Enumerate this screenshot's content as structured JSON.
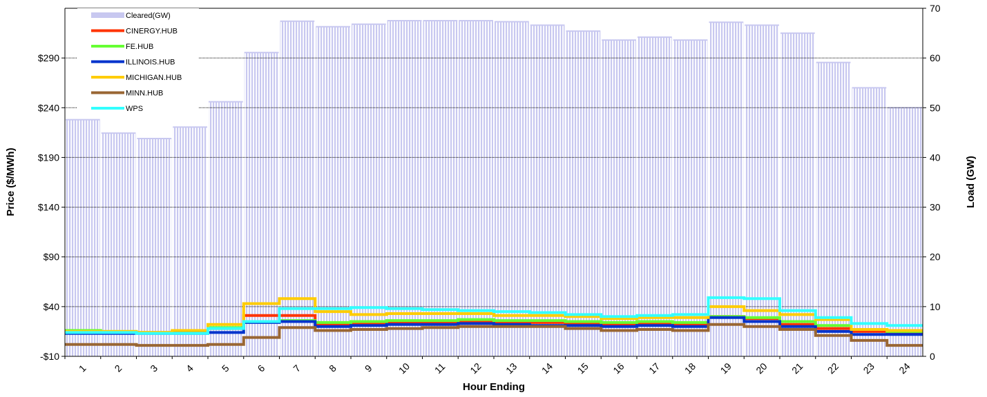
{
  "chart_data": {
    "type": "bar+line",
    "title": "",
    "xlabel": "Hour Ending",
    "ylabel_left": "Price ($/MWh)",
    "ylabel_right": "Load (GW)",
    "ylim_left": [
      -10,
      340
    ],
    "ylim_right": [
      0,
      70
    ],
    "left_ticks": [
      "-$10",
      "$40",
      "$90",
      "$140",
      "$190",
      "$240",
      "$290"
    ],
    "left_tick_values": [
      -10,
      40,
      90,
      140,
      190,
      240,
      290
    ],
    "right_ticks": [
      "0",
      "10",
      "20",
      "30",
      "40",
      "50",
      "60",
      "70"
    ],
    "right_tick_values": [
      0,
      10,
      20,
      30,
      40,
      50,
      60,
      70
    ],
    "categories": [
      "1",
      "2",
      "3",
      "4",
      "5",
      "6",
      "7",
      "8",
      "9",
      "10",
      "11",
      "12",
      "13",
      "14",
      "15",
      "16",
      "17",
      "18",
      "19",
      "20",
      "21",
      "22",
      "23",
      "24"
    ],
    "grid": "horizontal",
    "legend_position": "top-left",
    "bar_series": {
      "name": "Cleared(GW)",
      "axis": "right",
      "color": "#c8c8f0",
      "values": [
        47.6,
        44.9,
        43.8,
        46.1,
        51.2,
        61.1,
        67.4,
        66.3,
        66.8,
        67.5,
        67.5,
        67.5,
        67.3,
        66.6,
        65.4,
        63.6,
        64.2,
        63.6,
        67.2,
        66.6,
        65.0,
        59.1,
        54.0,
        50.0
      ]
    },
    "series": [
      {
        "name": "CINERGY.HUB",
        "color": "#ff3300",
        "values": [
          15,
          14,
          14,
          15,
          18,
          31,
          31,
          22,
          23,
          24,
          24,
          25,
          24,
          24,
          23,
          22,
          23,
          22,
          30,
          28,
          22,
          18,
          15,
          13
        ]
      },
      {
        "name": "FE.HUB",
        "color": "#66ff33",
        "values": [
          16,
          15,
          14,
          15,
          19,
          25,
          26,
          24,
          25,
          26,
          26,
          27,
          26,
          26,
          25,
          24,
          25,
          24,
          30,
          29,
          25,
          21,
          17,
          15
        ]
      },
      {
        "name": "ILLINOIS.HUB",
        "color": "#0033cc",
        "values": [
          13,
          13,
          13,
          13,
          14,
          24,
          25,
          20,
          21,
          22,
          22,
          23,
          22,
          21,
          21,
          20,
          21,
          20,
          29,
          25,
          20,
          15,
          12,
          12
        ]
      },
      {
        "name": "MICHIGAN.HUB",
        "color": "#ffcc00",
        "values": [
          15,
          15,
          14,
          16,
          22,
          43,
          48,
          35,
          32,
          33,
          33,
          33,
          31,
          31,
          30,
          28,
          29,
          29,
          40,
          36,
          32,
          27,
          17,
          16
        ]
      },
      {
        "name": "MINN.HUB",
        "color": "#996633",
        "values": [
          2,
          2,
          1,
          1,
          2,
          9,
          19,
          16,
          17,
          18,
          19,
          20,
          20,
          20,
          18,
          16,
          17,
          16,
          22,
          20,
          17,
          11,
          6,
          1
        ]
      },
      {
        "name": "WPS",
        "color": "#33ffff",
        "values": [
          14,
          14,
          13,
          13,
          18,
          25,
          38,
          38,
          39,
          38,
          37,
          36,
          35,
          34,
          32,
          30,
          31,
          32,
          49,
          48,
          36,
          29,
          23,
          21
        ]
      }
    ]
  }
}
